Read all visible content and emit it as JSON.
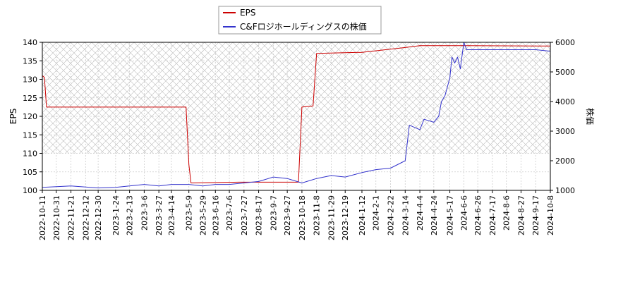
{
  "chart_data": {
    "type": "line",
    "title": "",
    "xlabel": "",
    "ylabel_left": "EPS",
    "ylabel_right": "株価",
    "ylim_left": [
      100,
      140
    ],
    "ylim_right": [
      1000,
      6000
    ],
    "y_ticks_left": [
      100,
      105,
      110,
      115,
      120,
      125,
      130,
      135,
      140
    ],
    "y_ticks_right": [
      1000,
      2000,
      3000,
      4000,
      5000,
      6000
    ],
    "x_range": [
      "2022-10-11",
      "2024-10-08"
    ],
    "x_ticks": [
      "2022-10-11",
      "2022-10-31",
      "2022-11-21",
      "2022-12-12",
      "2022-12-30",
      "2023-1-24",
      "2023-2-13",
      "2023-3-6",
      "2023-3-27",
      "2023-4-14",
      "2023-5-9",
      "2023-5-29",
      "2023-6-16",
      "2023-7-6",
      "2023-7-27",
      "2023-8-17",
      "2023-9-7",
      "2023-9-27",
      "2023-10-18",
      "2023-11-8",
      "2023-11-29",
      "2023-12-19",
      "2024-1-12",
      "2024-2-1",
      "2024-2-22",
      "2024-3-14",
      "2024-4-4",
      "2024-4-24",
      "2024-5-17",
      "2024-6-6",
      "2024-6-26",
      "2024-7-17",
      "2024-8-6",
      "2024-8-27",
      "2024-9-17",
      "2024-10-8"
    ],
    "grid": true,
    "legend_placement": "top-center",
    "series": [
      {
        "name": "EPS",
        "axis": "left",
        "color": "#cc0000",
        "points": [
          [
            "2022-10-11",
            131.0
          ],
          [
            "2022-10-14",
            130.5
          ],
          [
            "2022-10-17",
            122.5
          ],
          [
            "2023-2-20",
            122.5
          ],
          [
            "2023-5-5",
            122.5
          ],
          [
            "2023-5-9",
            107.0
          ],
          [
            "2023-5-12",
            102.0
          ],
          [
            "2023-7-20",
            102.2
          ],
          [
            "2023-10-13",
            102.2
          ],
          [
            "2023-10-18",
            122.5
          ],
          [
            "2023-11-3",
            122.8
          ],
          [
            "2023-11-8",
            137.0
          ],
          [
            "2024-1-12",
            137.3
          ],
          [
            "2024-2-15",
            138.0
          ],
          [
            "2024-3-14",
            138.6
          ],
          [
            "2024-4-4",
            139.1
          ],
          [
            "2024-6-6",
            139.1
          ],
          [
            "2024-10-8",
            139.0
          ]
        ]
      },
      {
        "name": "C&Fロジホールディングスの株価",
        "axis": "right",
        "color": "#3333cc",
        "points": [
          [
            "2022-10-11",
            1100
          ],
          [
            "2022-11-21",
            1150
          ],
          [
            "2022-12-30",
            1080
          ],
          [
            "2023-1-24",
            1100
          ],
          [
            "2023-3-6",
            1200
          ],
          [
            "2023-3-27",
            1150
          ],
          [
            "2023-4-14",
            1200
          ],
          [
            "2023-5-9",
            1200
          ],
          [
            "2023-5-29",
            1150
          ],
          [
            "2023-6-16",
            1200
          ],
          [
            "2023-7-6",
            1200
          ],
          [
            "2023-7-27",
            1250
          ],
          [
            "2023-8-17",
            1300
          ],
          [
            "2023-9-7",
            1450
          ],
          [
            "2023-9-27",
            1400
          ],
          [
            "2023-10-18",
            1250
          ],
          [
            "2023-11-8",
            1400
          ],
          [
            "2023-11-29",
            1500
          ],
          [
            "2023-12-19",
            1450
          ],
          [
            "2024-1-12",
            1600
          ],
          [
            "2024-2-1",
            1700
          ],
          [
            "2024-2-22",
            1750
          ],
          [
            "2024-3-14",
            2000
          ],
          [
            "2024-3-20",
            3200
          ],
          [
            "2024-4-4",
            3050
          ],
          [
            "2024-4-10",
            3400
          ],
          [
            "2024-4-24",
            3300
          ],
          [
            "2024-5-1",
            3500
          ],
          [
            "2024-5-5",
            4000
          ],
          [
            "2024-5-10",
            4200
          ],
          [
            "2024-5-17",
            4800
          ],
          [
            "2024-5-20",
            5500
          ],
          [
            "2024-5-24",
            5300
          ],
          [
            "2024-5-28",
            5500
          ],
          [
            "2024-6-1",
            5100
          ],
          [
            "2024-6-6",
            6000
          ],
          [
            "2024-6-10",
            5750
          ],
          [
            "2024-7-17",
            5750
          ],
          [
            "2024-8-6",
            5750
          ],
          [
            "2024-9-17",
            5750
          ],
          [
            "2024-10-8",
            5700
          ]
        ]
      }
    ]
  }
}
